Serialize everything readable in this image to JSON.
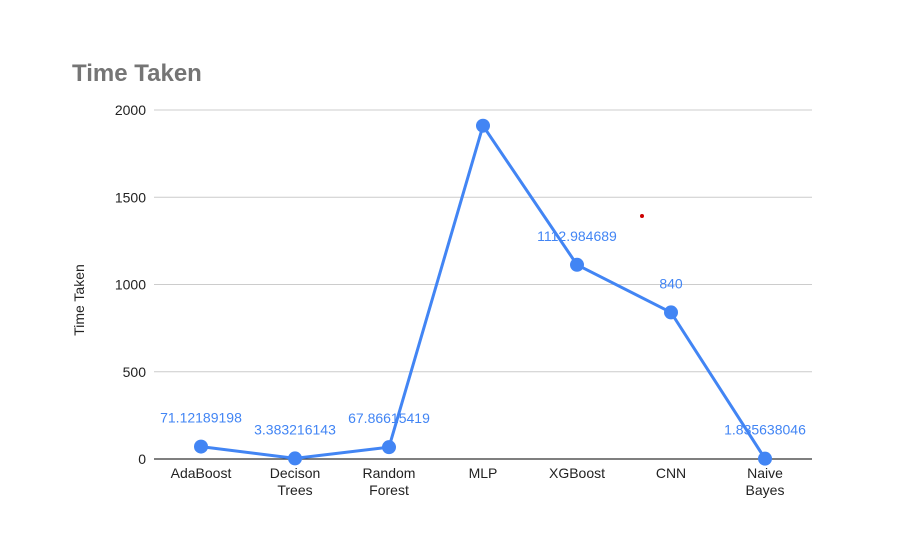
{
  "chart_data": {
    "type": "line",
    "title": "Time Taken",
    "xlabel": "",
    "ylabel": "Time Taken",
    "ylim": [
      0,
      2000
    ],
    "yticks": [
      0,
      500,
      1000,
      1500,
      2000
    ],
    "grid": true,
    "legend": "none",
    "color": "#4285f4",
    "categories": [
      [
        "AdaBoost"
      ],
      [
        "Decison",
        "Trees"
      ],
      [
        "Random",
        "Forest"
      ],
      [
        "MLP"
      ],
      [
        "XGBoost"
      ],
      [
        "CNN"
      ],
      [
        "Naive",
        "Bayes"
      ]
    ],
    "series": [
      {
        "values": [
          71.12189198,
          3.383216143,
          67.86615419,
          1910,
          1112.984689,
          840,
          1.835638046
        ]
      }
    ],
    "data_labels": [
      "71.12189198",
      "3.383216143",
      "67.86615419",
      "",
      "1112.984689",
      "840",
      "1.835638046"
    ]
  }
}
